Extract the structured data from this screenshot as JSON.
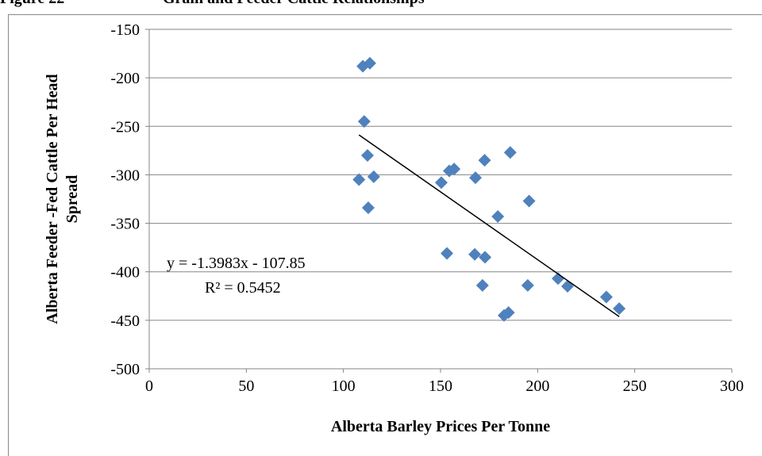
{
  "chart_data": {
    "type": "scatter",
    "figure_label": "Figure 22",
    "title": "Grain and Feeder Cattle Relationships",
    "x_label": "Alberta Barley Prices Per Tonne",
    "y_label": [
      "Alberta Feeder -Fed Cattle Per Head",
      "Spread"
    ],
    "xlim": [
      0,
      300
    ],
    "xticks": [
      0,
      50,
      100,
      150,
      200,
      250,
      300
    ],
    "ylim": [
      -500,
      -150
    ],
    "yticks": [
      -500,
      -450,
      -400,
      -350,
      -300,
      -250,
      -200,
      -150
    ],
    "grid": true,
    "series": [
      {
        "color": "#4f81bd",
        "x": [
          110,
          113.6,
          110.7,
          112.4,
          108,
          115.6,
          112.8,
          150.4,
          154.5,
          157,
          168,
          172.7,
          185.9,
          195.6,
          179.5,
          153.3,
          167.6,
          172.9,
          171.6,
          194.9,
          210.5,
          215.4,
          235.4,
          242,
          182.7,
          185
        ],
        "values": [
          -188,
          -185,
          -245,
          -280,
          -305,
          -302,
          -334,
          -308,
          -296,
          -294,
          -303,
          -285,
          -277,
          -327,
          -343,
          -381,
          -382,
          -385,
          -414,
          -414,
          -407,
          -415,
          -426,
          -438,
          -445,
          -442
        ]
      }
    ],
    "trendline": {
      "slope": -1.3983,
      "intercept": -107.85,
      "x_range": [
        108,
        242
      ],
      "color": "#000000",
      "equation": "y = -1.3983x - 107.85",
      "r_squared": "R² = 0.5452"
    }
  }
}
